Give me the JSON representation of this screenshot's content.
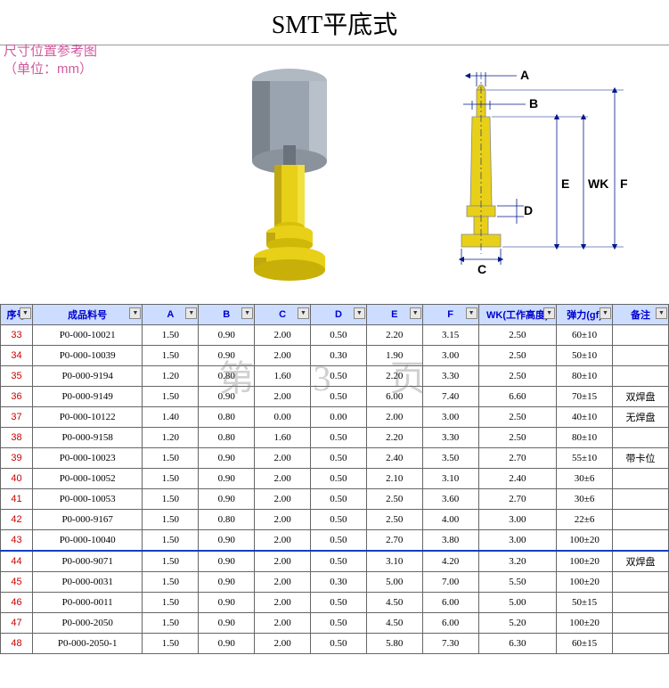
{
  "title": "SMT平底式",
  "subtitle_line1": "尺寸位置参考图",
  "subtitle_line2": "（单位：mm）",
  "watermark": "第 3 页",
  "dim_labels": {
    "A": "A",
    "B": "B",
    "C": "C",
    "D": "D",
    "E": "E",
    "F": "F",
    "WK": "WK"
  },
  "colors": {
    "header_bg": "#ccddff",
    "header_fg": "#0000cc",
    "idx_fg": "#cc0000",
    "subtitle_fg": "#d05a9e",
    "sep_line": "#1040c0",
    "pin_body": "#e8d018",
    "pin_shade": "#c0a810",
    "cap_body": "#9aa4b0",
    "cap_shade": "#7a828c",
    "dim_line": "#001888"
  },
  "table": {
    "headers": [
      "序号",
      "成品料号",
      "A",
      "B",
      "C",
      "D",
      "E",
      "F",
      "WK(工作高度)",
      "弹力(gf)",
      "备注"
    ],
    "rows": [
      {
        "idx": "33",
        "part": "P0-000-10021",
        "A": "1.50",
        "B": "0.90",
        "C": "2.00",
        "D": "0.50",
        "E": "2.20",
        "F": "3.15",
        "WK": "2.50",
        "force": "60±10",
        "remark": ""
      },
      {
        "idx": "34",
        "part": "P0-000-10039",
        "A": "1.50",
        "B": "0.90",
        "C": "2.00",
        "D": "0.30",
        "E": "1.90",
        "F": "3.00",
        "WK": "2.50",
        "force": "50±10",
        "remark": ""
      },
      {
        "idx": "35",
        "part": "P0-000-9194",
        "A": "1.20",
        "B": "0.80",
        "C": "1.60",
        "D": "0.50",
        "E": "2.20",
        "F": "3.30",
        "WK": "2.50",
        "force": "80±10",
        "remark": ""
      },
      {
        "idx": "36",
        "part": "P0-000-9149",
        "A": "1.50",
        "B": "0.90",
        "C": "2.00",
        "D": "0.50",
        "E": "6.00",
        "F": "7.40",
        "WK": "6.60",
        "force": "70±15",
        "remark": "双焊盘"
      },
      {
        "idx": "37",
        "part": "P0-000-10122",
        "A": "1.40",
        "B": "0.80",
        "C": "0.00",
        "D": "0.00",
        "E": "2.00",
        "F": "3.00",
        "WK": "2.50",
        "force": "40±10",
        "remark": "无焊盘"
      },
      {
        "idx": "38",
        "part": "P0-000-9158",
        "A": "1.20",
        "B": "0.80",
        "C": "1.60",
        "D": "0.50",
        "E": "2.20",
        "F": "3.30",
        "WK": "2.50",
        "force": "80±10",
        "remark": ""
      },
      {
        "idx": "39",
        "part": "P0-000-10023",
        "A": "1.50",
        "B": "0.90",
        "C": "2.00",
        "D": "0.50",
        "E": "2.40",
        "F": "3.50",
        "WK": "2.70",
        "force": "55±10",
        "remark": "带卡位"
      },
      {
        "idx": "40",
        "part": "P0-000-10052",
        "A": "1.50",
        "B": "0.90",
        "C": "2.00",
        "D": "0.50",
        "E": "2.10",
        "F": "3.10",
        "WK": "2.40",
        "force": "30±6",
        "remark": ""
      },
      {
        "idx": "41",
        "part": "P0-000-10053",
        "A": "1.50",
        "B": "0.90",
        "C": "2.00",
        "D": "0.50",
        "E": "2.50",
        "F": "3.60",
        "WK": "2.70",
        "force": "30±6",
        "remark": ""
      },
      {
        "idx": "42",
        "part": "P0-000-9167",
        "A": "1.50",
        "B": "0.80",
        "C": "2.00",
        "D": "0.50",
        "E": "2.50",
        "F": "4.00",
        "WK": "3.00",
        "force": "22±6",
        "remark": ""
      },
      {
        "idx": "43",
        "part": "P0-000-10040",
        "A": "1.50",
        "B": "0.90",
        "C": "2.00",
        "D": "0.50",
        "E": "2.70",
        "F": "3.80",
        "WK": "3.00",
        "force": "100±20",
        "remark": ""
      },
      {
        "idx": "44",
        "part": "P0-000-9071",
        "A": "1.50",
        "B": "0.90",
        "C": "2.00",
        "D": "0.50",
        "E": "3.10",
        "F": "4.20",
        "WK": "3.20",
        "force": "100±20",
        "remark": "双焊盘",
        "sep": true
      },
      {
        "idx": "45",
        "part": "P0-000-0031",
        "A": "1.50",
        "B": "0.90",
        "C": "2.00",
        "D": "0.30",
        "E": "5.00",
        "F": "7.00",
        "WK": "5.50",
        "force": "100±20",
        "remark": ""
      },
      {
        "idx": "46",
        "part": "P0-000-0011",
        "A": "1.50",
        "B": "0.90",
        "C": "2.00",
        "D": "0.50",
        "E": "4.50",
        "F": "6.00",
        "WK": "5.00",
        "force": "50±15",
        "remark": ""
      },
      {
        "idx": "47",
        "part": "P0-000-2050",
        "A": "1.50",
        "B": "0.90",
        "C": "2.00",
        "D": "0.50",
        "E": "4.50",
        "F": "6.00",
        "WK": "5.20",
        "force": "100±20",
        "remark": ""
      },
      {
        "idx": "48",
        "part": "P0-000-2050-1",
        "A": "1.50",
        "B": "0.90",
        "C": "2.00",
        "D": "0.50",
        "E": "5.80",
        "F": "7.30",
        "WK": "6.30",
        "force": "60±15",
        "remark": ""
      }
    ]
  }
}
